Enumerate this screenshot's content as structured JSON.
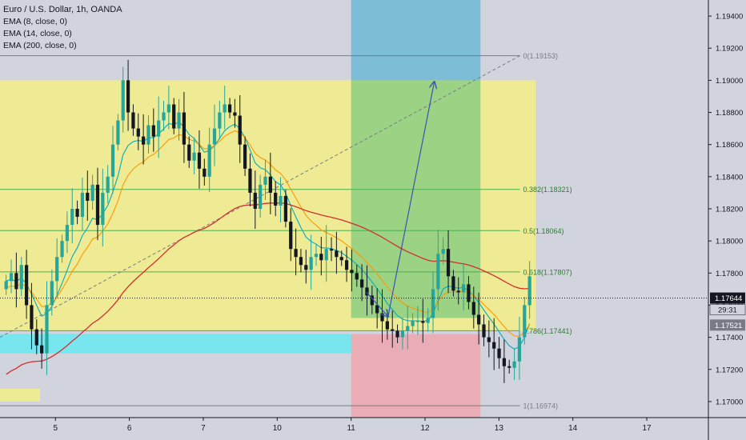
{
  "legend": {
    "symbol": "Euro / U.S. Dollar, 1h, OANDA",
    "ema8": "EMA (8, close, 0)",
    "ema14": "EMA (14, close, 0)",
    "ema200": "EMA (200, close, 0)"
  },
  "price_labels": {
    "current": "1.17644",
    "countdown": "29:31",
    "secondary": "1.17521"
  },
  "colors": {
    "background": "#d1d4dc",
    "bull_candle": "#26a69a",
    "bear_candle": "#131722",
    "ema_fast": "#00acc1",
    "ema_mid": "#ff9800",
    "ema_slow": "#d32f2f",
    "fib_zone": "#f3ee87",
    "fib_line": "#4caf50",
    "profit_zone": "#7fc97f",
    "target_zone": "#5ab4d6",
    "loss_zone": "#f2a0a8",
    "support_zone": "#6ee8f0",
    "arrow": "#3f51b5"
  },
  "chart_data": {
    "type": "candlestick",
    "symbol": "EUR/USD",
    "timeframe": "1h",
    "ylim": [
      1.169,
      1.195
    ],
    "y_ticks": [
      "1.19400",
      "1.19200",
      "1.19000",
      "1.18800",
      "1.18600",
      "1.18400",
      "1.18200",
      "1.18000",
      "1.17800",
      "1.17600",
      "1.17400",
      "1.17200",
      "1.17000"
    ],
    "x_ticks": [
      "5",
      "6",
      "7",
      "10",
      "11",
      "12",
      "13",
      "14",
      "17"
    ],
    "x_tick_positions_in_bars": [
      0,
      24,
      48,
      72,
      96,
      120,
      144,
      168,
      192
    ],
    "x_range_bars": [
      -18,
      212
    ],
    "closes": [
      1.1775,
      1.178,
      1.177,
      1.1785,
      1.176,
      1.1745,
      1.1735,
      1.173,
      1.176,
      1.1775,
      1.179,
      1.18,
      1.181,
      1.182,
      1.1815,
      1.183,
      1.1825,
      1.1835,
      1.181,
      1.183,
      1.184,
      1.186,
      1.1875,
      1.19,
      1.188,
      1.187,
      1.1865,
      1.186,
      1.1872,
      1.1865,
      1.1875,
      1.188,
      1.1885,
      1.187,
      1.188,
      1.186,
      1.185,
      1.1855,
      1.1845,
      1.184,
      1.186,
      1.187,
      1.188,
      1.1885,
      1.188,
      1.1878,
      1.186,
      1.1845,
      1.183,
      1.182,
      1.1835,
      1.184,
      1.183,
      1.1822,
      1.1828,
      1.1812,
      1.1795,
      1.179,
      1.1785,
      1.1782,
      1.179,
      1.1792,
      1.1788,
      1.1795,
      1.1794,
      1.179,
      1.1788,
      1.1782,
      1.178,
      1.1776,
      1.1771,
      1.1766,
      1.176,
      1.1755,
      1.175,
      1.1745,
      1.1744,
      1.174,
      1.1744,
      1.1747,
      1.175,
      1.175,
      1.1749,
      1.1752,
      1.177,
      1.1792,
      1.1795,
      1.1778,
      1.1769,
      1.1768,
      1.1773,
      1.1762,
      1.1754,
      1.1748,
      1.174,
      1.1737,
      1.1733,
      1.1727,
      1.1722,
      1.1721,
      1.1725,
      1.174,
      1.176,
      1.1778
    ],
    "series": [
      {
        "name": "EMA (8, close, 0)",
        "role": "ema_fast"
      },
      {
        "name": "EMA (14, close, 0)",
        "role": "ema_mid"
      },
      {
        "name": "EMA (200, close, 0)",
        "role": "ema_slow"
      }
    ],
    "fib_levels": [
      {
        "label": "0(1.19153)",
        "price": 1.19153
      },
      {
        "label": "0.382(1.18321)",
        "price": 1.18321
      },
      {
        "label": "0.5(1.18064)",
        "price": 1.18064
      },
      {
        "label": "0.618(1.17807)",
        "price": 1.17807
      },
      {
        "label": "0.786(1.17441)",
        "price": 1.17441
      },
      {
        "label": "1(1.16974)",
        "price": 1.16974
      }
    ],
    "zones": {
      "fib_zone": {
        "bars": [
          -18,
          156
        ],
        "price": [
          1.1744,
          1.19
        ]
      },
      "target": {
        "bars": [
          96,
          138
        ],
        "price": [
          1.19,
          1.1955
        ]
      },
      "profit": {
        "bars": [
          96,
          138
        ],
        "price": [
          1.1752,
          1.19
        ]
      },
      "loss": {
        "bars": [
          96,
          138
        ],
        "price": [
          1.169,
          1.1742
        ]
      },
      "support": {
        "bars": [
          -18,
          96
        ],
        "price": [
          1.173,
          1.1742
        ]
      },
      "small_box": {
        "bars": [
          -18,
          -5
        ],
        "price": [
          1.17,
          1.1708
        ]
      }
    },
    "arrows": [
      {
        "from": [
          108,
          1.1753
        ],
        "to": [
          123,
          1.1899
        ]
      }
    ],
    "current_price": 1.17644
  }
}
